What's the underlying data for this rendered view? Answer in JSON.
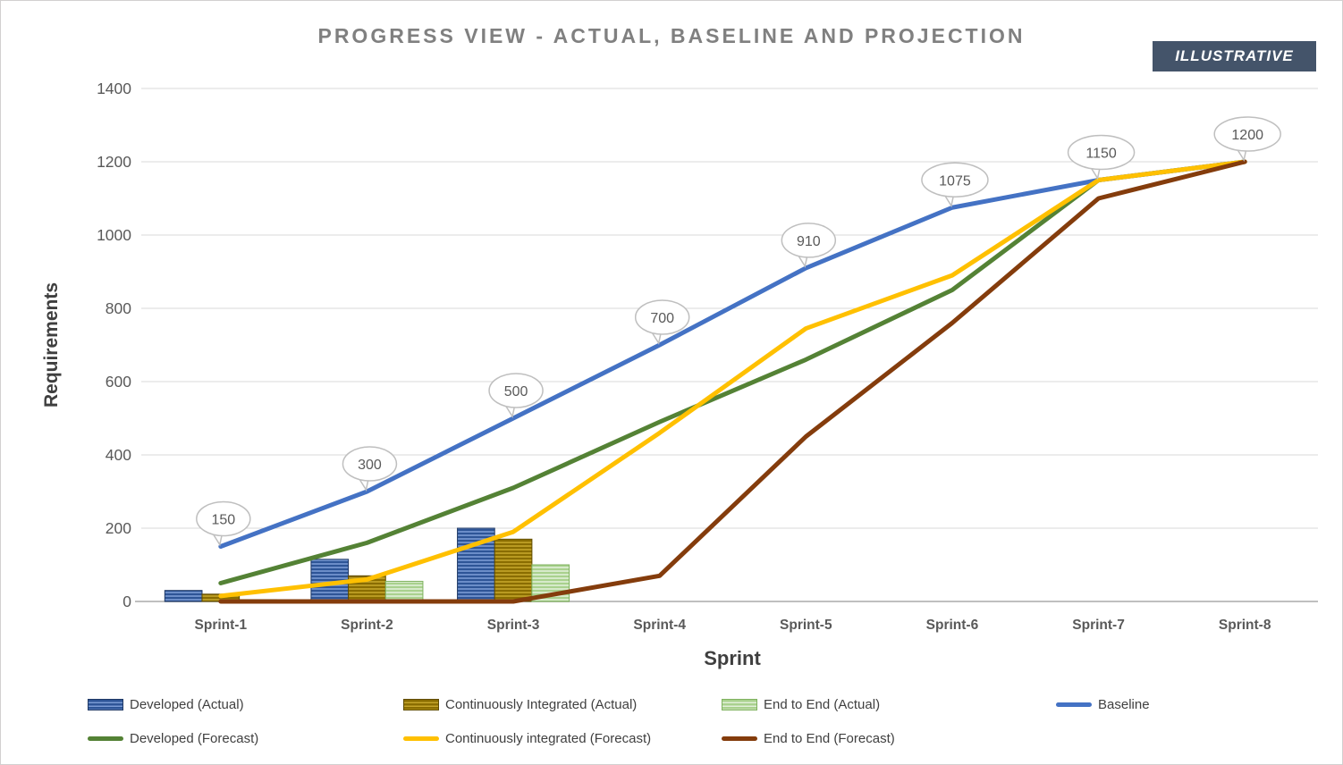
{
  "header": {
    "title": "PROGRESS VIEW - ACTUAL, BASELINE AND PROJECTION",
    "badge": "ILLUSTRATIVE"
  },
  "colors": {
    "title_text": "#808080",
    "badge_bg": "#44546A",
    "badge_text": "#FFFFFF",
    "axis_tick_text": "#595959",
    "axis_title_text": "#3F3F3F",
    "gridline": "#D9D9D9",
    "axis_line": "#BFBFBF",
    "callout_fill": "#FFFFFF",
    "callout_border": "#BFBFBF",
    "callout_text": "#595959",
    "baseline_line": "#4472C4",
    "developed_forecast_line": "#548235",
    "continuously_integrated_forecast_line": "#FFC000",
    "end_to_end_forecast_line": "#843C0C",
    "developed_actual_bar": "#2E5597",
    "continuously_integrated_actual_bar": "#8A6D00",
    "end_to_end_actual_bar": "#A9D18E"
  },
  "chart_data": {
    "type": "combo bar + line",
    "title": "PROGRESS VIEW - ACTUAL, BASELINE AND PROJECTION",
    "xlabel": "Sprint",
    "ylabel": "Requirements",
    "ylim": [
      0,
      1400
    ],
    "y_ticks": [
      "0",
      "200",
      "400",
      "600",
      "800",
      "1000",
      "1200",
      "1400"
    ],
    "grid": "horizontal gridlines on",
    "legend_position": "bottom",
    "categories": [
      "Sprint-1",
      "Sprint-2",
      "Sprint-3",
      "Sprint-4",
      "Sprint-5",
      "Sprint-6",
      "Sprint-7",
      "Sprint-8"
    ],
    "bar_series": [
      {
        "name": "Developed (Actual)",
        "fill": "#2E5597",
        "stripe": "#7A9BD4",
        "border": "#1F3864",
        "values": [
          30,
          115,
          200,
          null,
          null,
          null,
          null,
          null
        ]
      },
      {
        "name": "Continuously Integrated (Actual)",
        "fill": "#8A6D00",
        "stripe": "#C5A52B",
        "border": "#604C00",
        "values": [
          20,
          70,
          170,
          null,
          null,
          null,
          null,
          null
        ]
      },
      {
        "name": "End to End (Actual)",
        "fill": "#A9D18E",
        "stripe": "#E2F0D9",
        "border": "#7FB25F",
        "values": [
          5,
          55,
          100,
          null,
          null,
          null,
          null,
          null
        ]
      }
    ],
    "line_series": [
      {
        "name": "Developed (Forecast)",
        "color": "#548235",
        "values": [
          50,
          160,
          310,
          490,
          660,
          850,
          1150,
          1200
        ]
      },
      {
        "name": "Baseline",
        "color": "#4472C4",
        "values": [
          150,
          300,
          500,
          700,
          910,
          1075,
          1150,
          1200
        ],
        "data_labels": [
          "150",
          "300",
          "500",
          "700",
          "910",
          "1075",
          "1150",
          "1200"
        ]
      },
      {
        "name": "Continuously integrated (Forecast)",
        "color": "#FFC000",
        "values": [
          15,
          60,
          190,
          460,
          745,
          890,
          1150,
          1200
        ]
      },
      {
        "name": "End to End (Forecast)",
        "color": "#843C0C",
        "values": [
          0,
          0,
          0,
          70,
          450,
          760,
          1100,
          1200
        ]
      }
    ]
  }
}
